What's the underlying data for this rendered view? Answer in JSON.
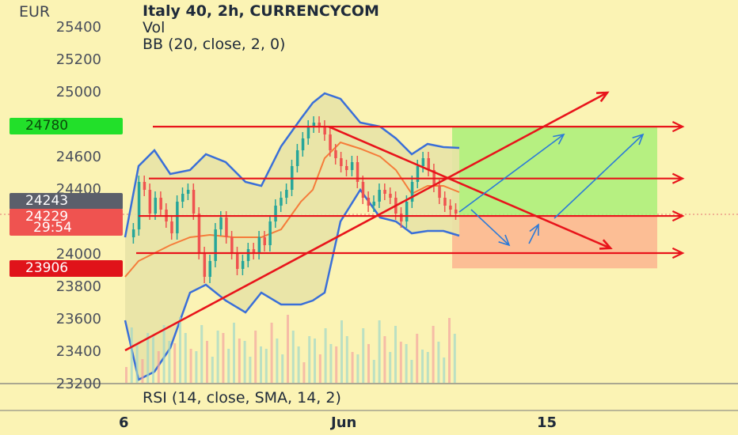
{
  "header": {
    "title": "Italy 40, 2h, CURRENCYCOM",
    "line2": "Vol",
    "line3": "BB (20, close, 2, 0)"
  },
  "axis": {
    "currency": "EUR"
  },
  "badges": {
    "green": {
      "label": "24780",
      "color": "#22e02a"
    },
    "gray": {
      "label": "24243",
      "color": "#5b5f6b"
    },
    "red_price": {
      "label": "24229",
      "color": "#ef5350"
    },
    "red_timer": {
      "label": "29:54",
      "color": "#ef5350"
    },
    "red_low": {
      "label": "23906",
      "color": "#e0131a"
    }
  },
  "rsi": {
    "label": "RSI (14, close, SMA, 14, 2)"
  },
  "x_ticks": [
    {
      "label": "6"
    },
    {
      "label": "Jun"
    },
    {
      "label": "15"
    }
  ],
  "colors": {
    "bg": "#fbf3b4",
    "up": "#26a69a",
    "down": "#ef5350",
    "band": "#3a6fd8",
    "basis": "#f57c3a",
    "drawing": "#e8141b",
    "arrow_blue": "#2b7ad8",
    "profit": "#a9ee78",
    "loss": "#fbb48f"
  },
  "chart_data": {
    "type": "candlestick",
    "symbol": "Italy 40",
    "timeframe": "2h",
    "source": "CURRENCYCOM",
    "ylim": [
      23150,
      25500
    ],
    "y_ticks": [
      23200,
      23400,
      23600,
      23800,
      24000,
      24200,
      24400,
      24600,
      24800,
      25000,
      25200,
      25400
    ],
    "y_tick_labels": [
      "23200",
      "23400",
      "23600",
      "23800",
      "24000",
      "24200",
      "24400",
      "24600",
      "24800",
      "25000",
      "25200",
      "25400"
    ],
    "annotations": {
      "horizontal_levels": [
        24780,
        24460,
        24229,
        24000
      ],
      "ascending_trendline": [
        23400,
        24990
      ],
      "descending_trendline": [
        24780,
        24030
      ],
      "long_target": 24780,
      "long_stop": 23906,
      "entry": 24229
    }
  }
}
